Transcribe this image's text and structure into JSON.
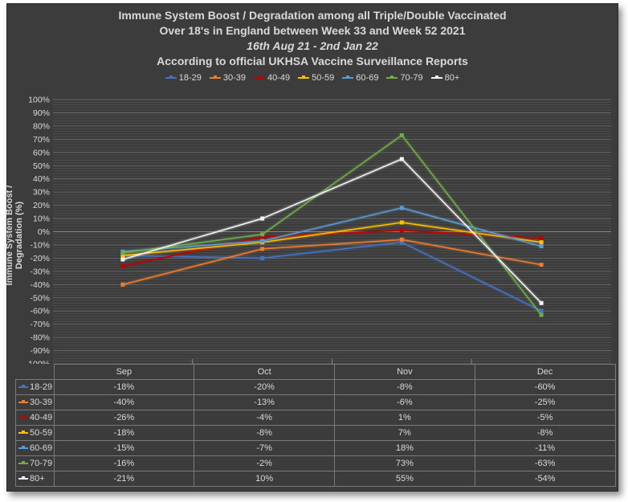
{
  "chart_data": {
    "type": "line",
    "title_lines": [
      "Immune System Boost / Degradation among all Triple/Double Vaccinated",
      "Over 18's in England between Week 33 and Week 52 2021",
      "16th Aug 21 - 2nd Jan 22",
      "According to official UKHSA Vaccine Surveillance Reports"
    ],
    "ylabel": "Immune System Boost / Degradation (%)",
    "ylim": [
      -100,
      100
    ],
    "ytick_step": 10,
    "yticks": [
      "100%",
      "90%",
      "80%",
      "70%",
      "60%",
      "50%",
      "40%",
      "30%",
      "20%",
      "10%",
      "0%",
      "-10%",
      "-20%",
      "-30%",
      "-40%",
      "-50%",
      "-60%",
      "-70%",
      "-80%",
      "-90%",
      "-100%"
    ],
    "categories": [
      "Sep",
      "Oct",
      "Nov",
      "Dec"
    ],
    "grid": true,
    "legend_position": "top",
    "data_table": true,
    "series": [
      {
        "name": "18-29",
        "color": "#4472c4",
        "values": [
          -18,
          -20,
          -8,
          -60
        ],
        "labels": [
          "-18%",
          "-20%",
          "-8%",
          "-60%"
        ]
      },
      {
        "name": "30-39",
        "color": "#ed7d31",
        "values": [
          -40,
          -13,
          -6,
          -25
        ],
        "labels": [
          "-40%",
          "-13%",
          "-6%",
          "-25%"
        ]
      },
      {
        "name": "40-49",
        "color": "#c00000",
        "values": [
          -26,
          -4,
          1,
          -5
        ],
        "labels": [
          "-26%",
          "-4%",
          "1%",
          "-5%"
        ]
      },
      {
        "name": "50-59",
        "color": "#ffc000",
        "values": [
          -18,
          -8,
          7,
          -8
        ],
        "labels": [
          "-18%",
          "-8%",
          "7%",
          "-8%"
        ]
      },
      {
        "name": "60-69",
        "color": "#5b9bd5",
        "values": [
          -15,
          -7,
          18,
          -11
        ],
        "labels": [
          "-15%",
          "-7%",
          "18%",
          "-11%"
        ]
      },
      {
        "name": "70-79",
        "color": "#70ad47",
        "values": [
          -16,
          -2,
          73,
          -63
        ],
        "labels": [
          "-16%",
          "-2%",
          "73%",
          "-63%"
        ]
      },
      {
        "name": "80+",
        "color": "#f2f2f2",
        "values": [
          -21,
          10,
          55,
          -54
        ],
        "labels": [
          "-21%",
          "10%",
          "55%",
          "-54%"
        ]
      }
    ]
  }
}
